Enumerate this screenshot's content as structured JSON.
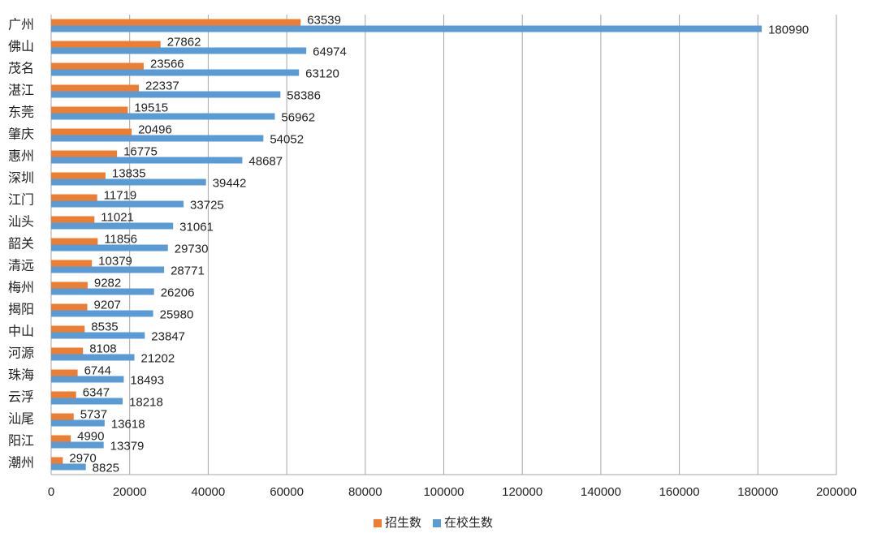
{
  "chart_data": {
    "type": "bar",
    "orientation": "horizontal",
    "categories": [
      "广州",
      "佛山",
      "茂名",
      "湛江",
      "东莞",
      "肇庆",
      "惠州",
      "深圳",
      "江门",
      "汕头",
      "韶关",
      "清远",
      "梅州",
      "揭阳",
      "中山",
      "河源",
      "珠海",
      "云浮",
      "汕尾",
      "阳江",
      "潮州"
    ],
    "series": [
      {
        "name": "招生数",
        "color": "#ed7d31",
        "values": [
          63539,
          27862,
          23566,
          22337,
          19515,
          20496,
          16775,
          13835,
          11719,
          11021,
          11856,
          10379,
          9282,
          9207,
          8535,
          8108,
          6744,
          6347,
          5737,
          4990,
          2970
        ]
      },
      {
        "name": "在校生数",
        "color": "#5b9bd5",
        "values": [
          180990,
          64974,
          63120,
          58386,
          56962,
          54052,
          48687,
          39442,
          33725,
          31061,
          29730,
          28771,
          26206,
          25980,
          23847,
          21202,
          18493,
          18218,
          13618,
          13379,
          8825
        ]
      }
    ],
    "xlim": [
      0,
      200000
    ],
    "xticks": [
      0,
      20000,
      40000,
      60000,
      80000,
      100000,
      120000,
      140000,
      160000,
      180000,
      200000
    ],
    "grid": true,
    "legend": "bottom"
  }
}
